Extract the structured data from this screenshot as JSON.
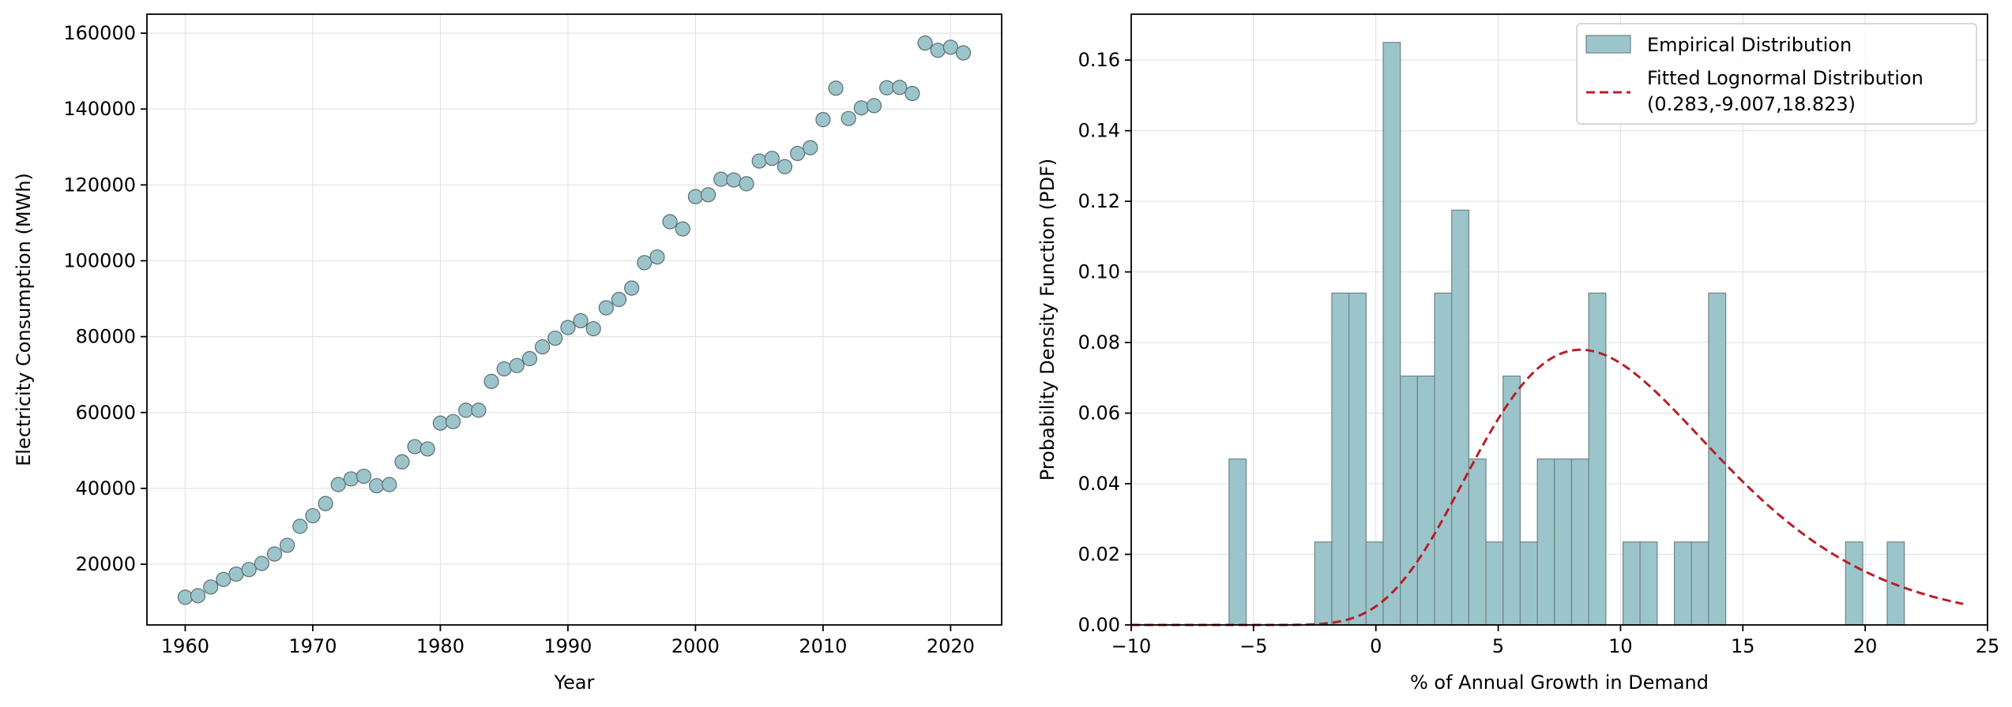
{
  "colors": {
    "marker_fill": "#9cc5cb",
    "marker_edge": "#5a6e72",
    "bar_fill": "#9cc5cb",
    "bar_edge": "#6e8387",
    "fit_line": "#b72025"
  },
  "chart_data": [
    {
      "type": "scatter",
      "title": "",
      "xlabel": "Year",
      "ylabel": "Electricity Consumption (MWh)",
      "xlim": [
        1957,
        2024
      ],
      "ylim": [
        4000,
        165000
      ],
      "xticks": [
        1960,
        1970,
        1980,
        1990,
        2000,
        2010,
        2020
      ],
      "yticks": [
        20000,
        40000,
        60000,
        80000,
        100000,
        120000,
        140000,
        160000
      ],
      "grid": true,
      "series": [
        {
          "x": [
            1960,
            1961,
            1962,
            1963,
            1964,
            1965,
            1966,
            1967,
            1968,
            1969,
            1970,
            1971,
            1972,
            1973,
            1974,
            1975,
            1976,
            1977,
            1978,
            1979,
            1980,
            1981,
            1982,
            1983,
            1984,
            1985,
            1986,
            1987,
            1988,
            1989,
            1990,
            1991,
            1992,
            1993,
            1994,
            1995,
            1996,
            1997,
            1998,
            1999,
            2000,
            2001,
            2002,
            2003,
            2004,
            2005,
            2006,
            2007,
            2008,
            2009,
            2010,
            2011,
            2012,
            2013,
            2014,
            2015,
            2016,
            2017,
            2018,
            2019,
            2020,
            2021
          ],
          "y": [
            11300,
            11700,
            14000,
            16000,
            17400,
            18600,
            20200,
            22700,
            25000,
            30000,
            32800,
            36000,
            41000,
            42500,
            43200,
            40700,
            41000,
            47000,
            51000,
            50400,
            57200,
            57600,
            60600,
            60600,
            68200,
            71500,
            72400,
            74200,
            77300,
            79600,
            82400,
            84200,
            82100,
            87600,
            89800,
            92800,
            99500,
            101000,
            110300,
            108400,
            116900,
            117400,
            121500,
            121300,
            120300,
            126300,
            127000,
            124800,
            128300,
            129800,
            137200,
            145500,
            137500,
            140300,
            140900,
            145600,
            145700,
            144100,
            157400,
            155500,
            156300,
            154800
          ]
        }
      ]
    },
    {
      "type": "bar",
      "title": "",
      "xlabel": "% of Annual Growth in Demand",
      "ylabel": "Probability Density Function (PDF)",
      "xlim": [
        -10,
        25
      ],
      "ylim": [
        0,
        0.173
      ],
      "xticks": [
        -10,
        -5,
        0,
        5,
        10,
        15,
        20,
        25
      ],
      "yticks": [
        0.0,
        0.02,
        0.04,
        0.06,
        0.08,
        0.1,
        0.12,
        0.14,
        0.16
      ],
      "grid": true,
      "legend_position": "top-right",
      "bin_width": 0.7,
      "bins": [
        {
          "x0": -6.0,
          "value": 0.047
        },
        {
          "x0": -2.5,
          "value": 0.0235
        },
        {
          "x0": -1.8,
          "value": 0.094
        },
        {
          "x0": -1.1,
          "value": 0.094
        },
        {
          "x0": -0.4,
          "value": 0.0235
        },
        {
          "x0": 0.3,
          "value": 0.165
        },
        {
          "x0": 1.0,
          "value": 0.0705
        },
        {
          "x0": 1.7,
          "value": 0.0705
        },
        {
          "x0": 2.4,
          "value": 0.094
        },
        {
          "x0": 3.1,
          "value": 0.1175
        },
        {
          "x0": 3.8,
          "value": 0.047
        },
        {
          "x0": 4.5,
          "value": 0.0235
        },
        {
          "x0": 5.2,
          "value": 0.0705
        },
        {
          "x0": 5.9,
          "value": 0.0235
        },
        {
          "x0": 6.6,
          "value": 0.047
        },
        {
          "x0": 7.3,
          "value": 0.047
        },
        {
          "x0": 8.0,
          "value": 0.047
        },
        {
          "x0": 8.7,
          "value": 0.094
        },
        {
          "x0": 10.1,
          "value": 0.0235
        },
        {
          "x0": 10.8,
          "value": 0.0235
        },
        {
          "x0": 12.2,
          "value": 0.0235
        },
        {
          "x0": 12.9,
          "value": 0.0235
        },
        {
          "x0": 13.6,
          "value": 0.094
        },
        {
          "x0": 19.2,
          "value": 0.0235
        },
        {
          "x0": 20.9,
          "value": 0.0235
        }
      ],
      "fit": {
        "shape": 0.283,
        "loc": -9.007,
        "scale": 18.823,
        "x_range": [
          -10,
          24
        ]
      },
      "legend": [
        {
          "label": "Empirical Distribution",
          "kind": "patch"
        },
        {
          "label": "Fitted Lognormal Distribution",
          "label2": "(0.283,-9.007,18.823)",
          "kind": "dashed-line"
        }
      ]
    }
  ]
}
